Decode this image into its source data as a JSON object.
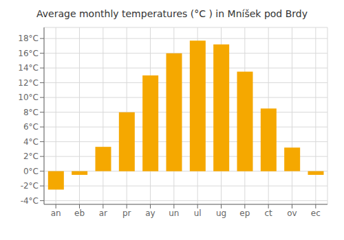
{
  "chart_data": {
    "type": "bar",
    "title": "Average monthly temperatures (°C ) in Mníšek pod Brdy",
    "categories": [
      "an",
      "eb",
      "ar",
      "pr",
      "ay",
      "un",
      "ul",
      "ug",
      "ep",
      "ct",
      "ov",
      "ec"
    ],
    "values": [
      -2.5,
      -0.5,
      3.3,
      8.0,
      13.0,
      16.0,
      17.7,
      17.2,
      13.5,
      8.5,
      3.2,
      -0.5
    ],
    "color": "#F5A800",
    "ylim": [
      -4.5,
      19.5
    ],
    "yticks": [
      {
        "value": -4,
        "label": "-4°C"
      },
      {
        "value": -2,
        "label": "-2°C"
      },
      {
        "value": 0,
        "label": "0°C"
      },
      {
        "value": 2,
        "label": "2°C"
      },
      {
        "value": 4,
        "label": "4°C"
      },
      {
        "value": 6,
        "label": "6°C"
      },
      {
        "value": 8,
        "label": "8°C"
      },
      {
        "value": 10,
        "label": "10°C"
      },
      {
        "value": 12,
        "label": "12°C"
      },
      {
        "value": 14,
        "label": "14°C"
      },
      {
        "value": 16,
        "label": "16°C"
      },
      {
        "value": 18,
        "label": "18°C"
      }
    ],
    "grid": true
  }
}
